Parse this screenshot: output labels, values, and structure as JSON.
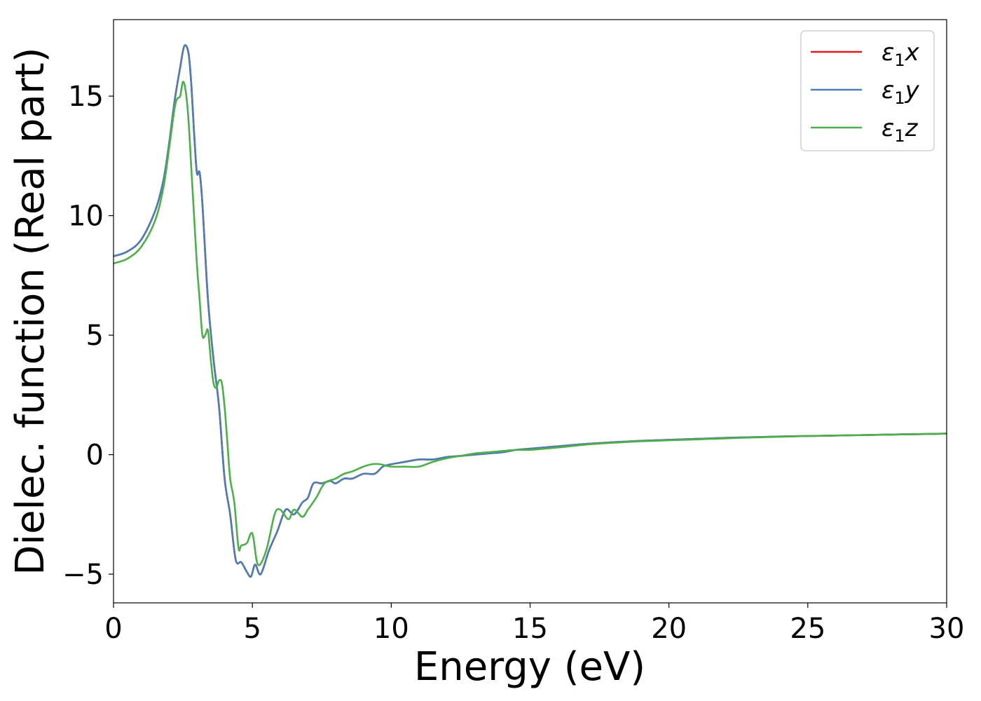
{
  "chart_data": {
    "type": "line",
    "title": "",
    "xlabel": "Energy (eV)",
    "ylabel": "Dielec. function (Real part)",
    "xlim": [
      0,
      30
    ],
    "ylim": [
      -6.2,
      18.2
    ],
    "xticks": [
      0,
      5,
      10,
      15,
      20,
      25,
      30
    ],
    "xtick_labels": [
      "0",
      "5",
      "10",
      "15",
      "20",
      "25",
      "30"
    ],
    "yticks": [
      -5,
      0,
      5,
      10,
      15
    ],
    "ytick_labels": [
      "−5",
      "0",
      "5",
      "10",
      "15"
    ],
    "grid": false,
    "legend_position": "top-right",
    "series": [
      {
        "name": "ε₁x",
        "legend": {
          "symbol": "ε",
          "sub": "1",
          "axis": "x"
        },
        "color": "#e41a1c",
        "x": [
          0,
          0.5,
          1.0,
          1.5,
          1.8,
          2.0,
          2.2,
          2.4,
          2.55,
          2.7,
          2.8,
          2.9,
          3.0,
          3.1,
          3.2,
          3.4,
          3.6,
          3.8,
          4.0,
          4.2,
          4.4,
          4.6,
          4.8,
          4.95,
          5.1,
          5.3,
          5.6,
          5.9,
          6.2,
          6.5,
          6.8,
          7.0,
          7.2,
          7.5,
          7.8,
          8.0,
          8.3,
          8.6,
          9.0,
          9.4,
          9.7,
          10.0,
          10.5,
          11.0,
          11.5,
          12.0,
          12.5,
          13.0,
          13.5,
          14.0,
          14.5,
          15.0,
          15.5,
          16.0,
          17.0,
          18.0,
          19.0,
          20.0,
          21.0,
          22.0,
          23.0,
          24.0,
          25.0,
          26.0,
          27.0,
          28.0,
          29.0,
          30.0
        ],
        "y": [
          8.3,
          8.5,
          9.0,
          10.2,
          11.5,
          13.0,
          14.8,
          16.2,
          17.1,
          16.8,
          15.5,
          13.5,
          11.8,
          11.8,
          10.5,
          6.5,
          4.0,
          2.0,
          -1.0,
          -2.5,
          -4.4,
          -4.5,
          -4.9,
          -5.1,
          -4.6,
          -5.0,
          -4.0,
          -3.2,
          -2.3,
          -2.5,
          -2.0,
          -1.8,
          -1.2,
          -1.2,
          -1.1,
          -1.2,
          -1.0,
          -1.0,
          -0.8,
          -0.8,
          -0.5,
          -0.4,
          -0.3,
          -0.2,
          -0.2,
          -0.1,
          -0.05,
          0.0,
          0.05,
          0.1,
          0.2,
          0.25,
          0.3,
          0.35,
          0.45,
          0.52,
          0.58,
          0.62,
          0.66,
          0.7,
          0.73,
          0.76,
          0.78,
          0.8,
          0.82,
          0.84,
          0.86,
          0.88
        ]
      },
      {
        "name": "ε₁y",
        "legend": {
          "symbol": "ε",
          "sub": "1",
          "axis": "y"
        },
        "color": "#4a7fb5",
        "x": [
          0,
          0.5,
          1.0,
          1.5,
          1.8,
          2.0,
          2.2,
          2.4,
          2.55,
          2.7,
          2.8,
          2.9,
          3.0,
          3.1,
          3.2,
          3.4,
          3.6,
          3.8,
          4.0,
          4.2,
          4.4,
          4.6,
          4.8,
          4.95,
          5.1,
          5.3,
          5.6,
          5.9,
          6.2,
          6.5,
          6.8,
          7.0,
          7.2,
          7.5,
          7.8,
          8.0,
          8.3,
          8.6,
          9.0,
          9.4,
          9.7,
          10.0,
          10.5,
          11.0,
          11.5,
          12.0,
          12.5,
          13.0,
          13.5,
          14.0,
          14.5,
          15.0,
          15.5,
          16.0,
          17.0,
          18.0,
          19.0,
          20.0,
          21.0,
          22.0,
          23.0,
          24.0,
          25.0,
          26.0,
          27.0,
          28.0,
          29.0,
          30.0
        ],
        "y": [
          8.3,
          8.5,
          9.0,
          10.2,
          11.5,
          13.0,
          14.8,
          16.2,
          17.1,
          16.8,
          15.5,
          13.5,
          11.8,
          11.8,
          10.5,
          6.5,
          4.0,
          2.0,
          -1.0,
          -2.5,
          -4.4,
          -4.5,
          -4.9,
          -5.1,
          -4.6,
          -5.0,
          -4.0,
          -3.2,
          -2.3,
          -2.5,
          -2.0,
          -1.8,
          -1.2,
          -1.2,
          -1.1,
          -1.2,
          -1.0,
          -1.0,
          -0.8,
          -0.8,
          -0.5,
          -0.4,
          -0.3,
          -0.2,
          -0.2,
          -0.1,
          -0.05,
          0.0,
          0.05,
          0.1,
          0.2,
          0.25,
          0.3,
          0.35,
          0.45,
          0.52,
          0.58,
          0.62,
          0.66,
          0.7,
          0.73,
          0.76,
          0.78,
          0.8,
          0.82,
          0.84,
          0.86,
          0.88
        ]
      },
      {
        "name": "ε₁z",
        "legend": {
          "symbol": "ε",
          "sub": "1",
          "axis": "z"
        },
        "color": "#4daf4a",
        "x": [
          0,
          0.5,
          1.0,
          1.5,
          1.8,
          2.0,
          2.2,
          2.3,
          2.4,
          2.5,
          2.6,
          2.7,
          2.8,
          2.9,
          3.0,
          3.1,
          3.2,
          3.3,
          3.4,
          3.5,
          3.6,
          3.7,
          3.8,
          3.9,
          4.0,
          4.1,
          4.2,
          4.35,
          4.5,
          4.6,
          4.8,
          5.0,
          5.2,
          5.5,
          5.8,
          6.0,
          6.3,
          6.5,
          6.8,
          7.0,
          7.3,
          7.6,
          8.0,
          8.3,
          8.6,
          9.0,
          9.3,
          9.6,
          10.0,
          10.5,
          11.0,
          11.5,
          12.0,
          12.5,
          13.0,
          13.5,
          14.0,
          14.5,
          15.0,
          15.5,
          16.0,
          17.0,
          18.0,
          19.0,
          20.0,
          21.0,
          22.0,
          23.0,
          24.0,
          25.0,
          26.0,
          27.0,
          28.0,
          29.0,
          30.0
        ],
        "y": [
          8.0,
          8.2,
          8.7,
          9.8,
          11.2,
          12.8,
          14.5,
          14.9,
          15.0,
          15.6,
          15.2,
          14.0,
          12.0,
          10.0,
          8.0,
          6.5,
          5.0,
          5.0,
          5.2,
          4.0,
          3.0,
          2.8,
          3.1,
          3.0,
          2.0,
          0.5,
          -1.0,
          -2.0,
          -3.9,
          -3.8,
          -3.7,
          -3.3,
          -4.6,
          -4.0,
          -2.5,
          -2.3,
          -2.7,
          -2.3,
          -2.6,
          -2.3,
          -1.8,
          -1.2,
          -1.0,
          -0.8,
          -0.7,
          -0.5,
          -0.4,
          -0.4,
          -0.5,
          -0.5,
          -0.5,
          -0.3,
          -0.15,
          -0.05,
          0.05,
          0.1,
          0.15,
          0.2,
          0.2,
          0.25,
          0.3,
          0.42,
          0.5,
          0.56,
          0.6,
          0.64,
          0.68,
          0.72,
          0.75,
          0.78,
          0.8,
          0.82,
          0.84,
          0.86,
          0.88
        ]
      }
    ]
  }
}
